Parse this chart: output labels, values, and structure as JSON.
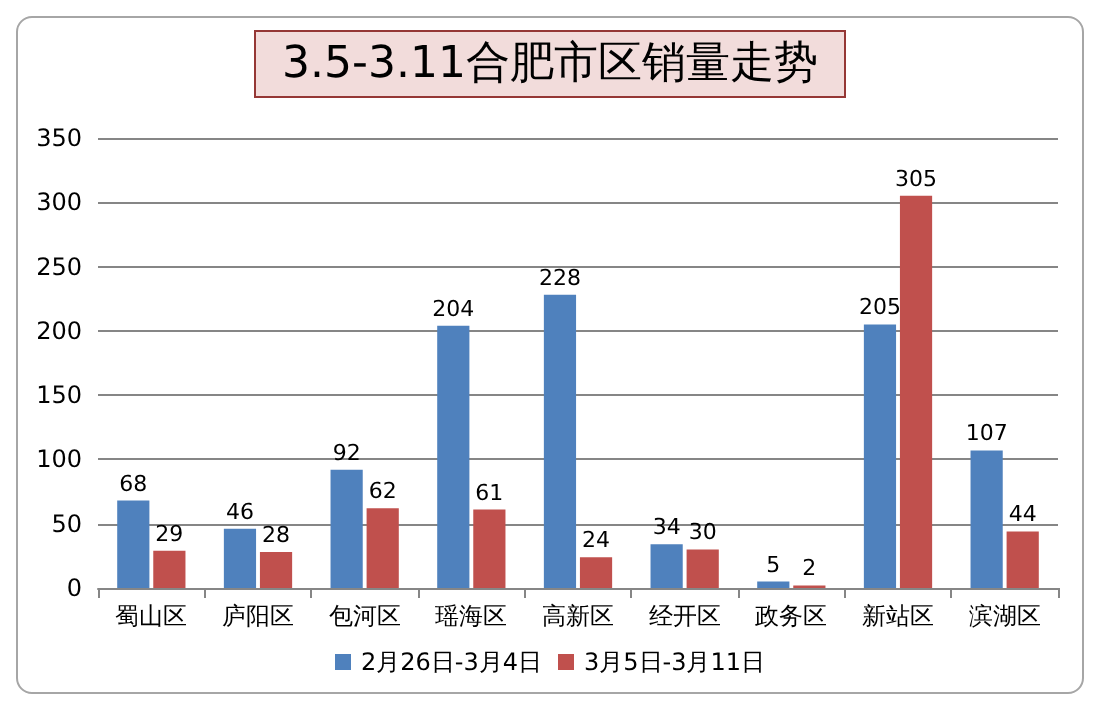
{
  "chart_data": {
    "type": "bar",
    "title": "3.5-3.11合肥市区销量走势",
    "categories": [
      "蜀山区",
      "庐阳区",
      "包河区",
      "瑶海区",
      "高新区",
      "经开区",
      "政务区",
      "新站区",
      "滨湖区"
    ],
    "series": [
      {
        "name": "2月26日-3月4日",
        "color": "#4f81bd",
        "values": [
          68,
          46,
          92,
          204,
          228,
          34,
          5,
          205,
          107
        ]
      },
      {
        "name": "3月5日-3月11日",
        "color": "#c0504d",
        "values": [
          29,
          28,
          62,
          61,
          24,
          30,
          2,
          305,
          44
        ]
      }
    ],
    "ylim": [
      0,
      350
    ],
    "yticks": [
      0,
      50,
      100,
      150,
      200,
      250,
      300,
      350
    ],
    "grid": "y",
    "legend": "bottom",
    "data_labels": true
  }
}
